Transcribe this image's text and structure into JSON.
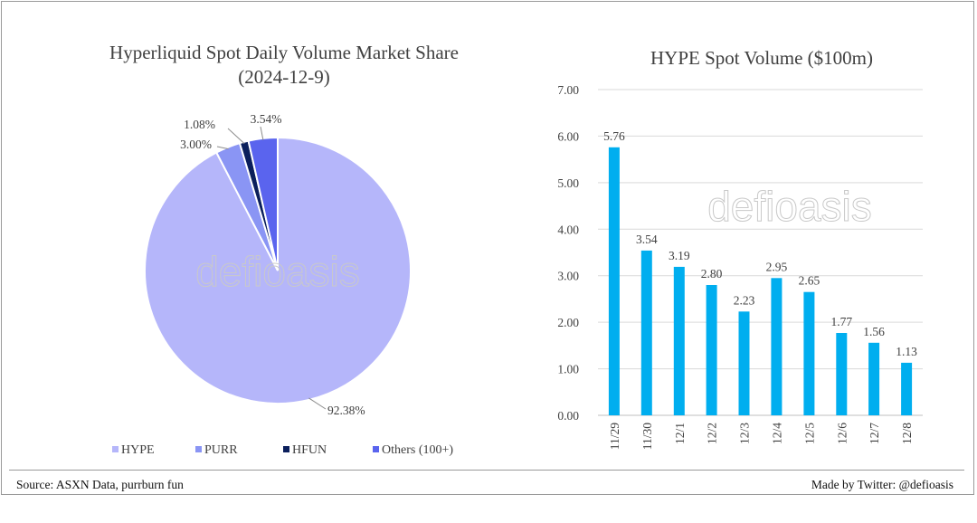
{
  "chart_data": [
    {
      "type": "pie",
      "title": "Hyperliquid Spot Daily Volume Market Share",
      "subtitle": "(2024-12-9)",
      "watermark": "defioasis",
      "slices": [
        {
          "label": "HYPE",
          "value": 92.38,
          "value_label": "92.38%",
          "color": "#b5b6fa"
        },
        {
          "label": "PURR",
          "value": 3.0,
          "value_label": "3.00%",
          "color": "#8a95f4"
        },
        {
          "label": "HFUN",
          "value": 1.08,
          "value_label": "1.08%",
          "color": "#0b1f5c"
        },
        {
          "label": "Others (100+)",
          "value": 3.54,
          "value_label": "3.54%",
          "color": "#5a64ee"
        }
      ],
      "legend_position": "bottom"
    },
    {
      "type": "bar",
      "title": "HYPE Spot Volume ($100m)",
      "watermark": "defioasis",
      "categories": [
        "11/29",
        "11/30",
        "12/1",
        "12/2",
        "12/3",
        "12/4",
        "12/5",
        "12/6",
        "12/7",
        "12/8"
      ],
      "values": [
        5.76,
        3.54,
        3.19,
        2.8,
        2.23,
        2.95,
        2.65,
        1.77,
        1.56,
        1.13
      ],
      "value_labels": [
        "5.76",
        "3.54",
        "3.19",
        "2.80",
        "2.23",
        "2.95",
        "2.65",
        "1.77",
        "1.56",
        "1.13"
      ],
      "ylim": [
        0,
        7
      ],
      "yticks": [
        "0.00",
        "1.00",
        "2.00",
        "3.00",
        "4.00",
        "5.00",
        "6.00",
        "7.00"
      ],
      "grid": true,
      "bar_color": "#00aeef",
      "xlabel": "",
      "ylabel": ""
    }
  ],
  "footer": {
    "source": "Source: ASXN Data, purrburn fun",
    "credit": "Made by Twitter: @defioasis"
  }
}
